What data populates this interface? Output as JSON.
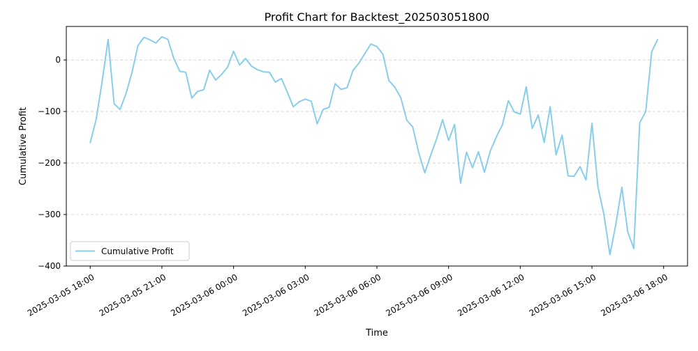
{
  "chart_data": {
    "type": "line",
    "title": "Profit Chart for Backtest_202503051800",
    "xlabel": "Time",
    "ylabel": "Cumulative Profit",
    "xlim": [
      "2025-03-05 17:00",
      "2025-03-06 19:00"
    ],
    "ylim": [
      -400,
      65
    ],
    "yticks": [
      0,
      -100,
      -200,
      -300,
      -400
    ],
    "yticklabels": [
      "0",
      "−100",
      "−200",
      "−300",
      "−400"
    ],
    "xticks": [
      "2025-03-05 18:00",
      "2025-03-05 21:00",
      "2025-03-06 00:00",
      "2025-03-06 03:00",
      "2025-03-06 06:00",
      "2025-03-06 09:00",
      "2025-03-06 12:00",
      "2025-03-06 15:00",
      "2025-03-06 18:00"
    ],
    "xticklabels": [
      "2025-03-05 18:00",
      "2025-03-05 21:00",
      "2025-03-06 00:00",
      "2025-03-06 03:00",
      "2025-03-06 06:00",
      "2025-03-06 09:00",
      "2025-03-06 12:00",
      "2025-03-06 15:00",
      "2025-03-06 18:00"
    ],
    "grid": "y-dashed",
    "legend": "lower left",
    "series": [
      {
        "name": "Cumulative Profit",
        "color": "#87CEEB",
        "x": [
          "2025-03-05 18:00",
          "2025-03-05 18:15",
          "2025-03-05 18:30",
          "2025-03-05 18:45",
          "2025-03-05 19:00",
          "2025-03-05 19:15",
          "2025-03-05 19:30",
          "2025-03-05 19:45",
          "2025-03-05 20:00",
          "2025-03-05 20:15",
          "2025-03-05 20:30",
          "2025-03-05 20:45",
          "2025-03-05 21:00",
          "2025-03-05 21:15",
          "2025-03-05 21:30",
          "2025-03-05 21:45",
          "2025-03-05 22:00",
          "2025-03-05 22:15",
          "2025-03-05 22:30",
          "2025-03-05 22:45",
          "2025-03-05 23:00",
          "2025-03-05 23:15",
          "2025-03-05 23:30",
          "2025-03-05 23:45",
          "2025-03-06 00:00",
          "2025-03-06 00:15",
          "2025-03-06 00:30",
          "2025-03-06 00:45",
          "2025-03-06 01:00",
          "2025-03-06 01:15",
          "2025-03-06 01:30",
          "2025-03-06 01:45",
          "2025-03-06 02:00",
          "2025-03-06 02:15",
          "2025-03-06 02:30",
          "2025-03-06 02:45",
          "2025-03-06 03:00",
          "2025-03-06 03:15",
          "2025-03-06 03:30",
          "2025-03-06 03:45",
          "2025-03-06 04:00",
          "2025-03-06 04:15",
          "2025-03-06 04:30",
          "2025-03-06 04:45",
          "2025-03-06 05:00",
          "2025-03-06 05:15",
          "2025-03-06 05:30",
          "2025-03-06 05:45",
          "2025-03-06 06:00",
          "2025-03-06 06:15",
          "2025-03-06 06:30",
          "2025-03-06 06:45",
          "2025-03-06 07:00",
          "2025-03-06 07:15",
          "2025-03-06 07:30",
          "2025-03-06 07:45",
          "2025-03-06 08:00",
          "2025-03-06 08:15",
          "2025-03-06 08:30",
          "2025-03-06 08:45",
          "2025-03-06 09:00",
          "2025-03-06 09:15",
          "2025-03-06 09:30",
          "2025-03-06 09:45",
          "2025-03-06 10:00",
          "2025-03-06 10:15",
          "2025-03-06 10:30",
          "2025-03-06 10:45",
          "2025-03-06 11:00",
          "2025-03-06 11:15",
          "2025-03-06 11:30",
          "2025-03-06 11:45",
          "2025-03-06 12:00",
          "2025-03-06 12:15",
          "2025-03-06 12:30",
          "2025-03-06 12:45",
          "2025-03-06 13:00",
          "2025-03-06 13:15",
          "2025-03-06 13:30",
          "2025-03-06 13:45",
          "2025-03-06 14:00",
          "2025-03-06 14:15",
          "2025-03-06 14:30",
          "2025-03-06 14:45",
          "2025-03-06 15:00",
          "2025-03-06 15:15",
          "2025-03-06 15:30",
          "2025-03-06 15:45",
          "2025-03-06 16:00",
          "2025-03-06 16:15",
          "2025-03-06 16:30",
          "2025-03-06 16:45",
          "2025-03-06 17:00",
          "2025-03-06 17:15",
          "2025-03-06 17:30",
          "2025-03-06 17:45"
        ],
        "y": [
          -161,
          -115,
          -42,
          40,
          -85,
          -96,
          -65,
          -24,
          28,
          44,
          39,
          33,
          45,
          40,
          3,
          -22,
          -24,
          -74,
          -61,
          -58,
          -20,
          -39,
          -28,
          -14,
          17,
          -10,
          3,
          -12,
          -19,
          -23,
          -24,
          -43,
          -36,
          -62,
          -91,
          -81,
          -76,
          -80,
          -124,
          -96,
          -92,
          -46,
          -57,
          -54,
          -20,
          -6,
          13,
          31,
          26,
          11,
          -40,
          -53,
          -73,
          -117,
          -130,
          -180,
          -219,
          -185,
          -153,
          -116,
          -156,
          -125,
          -239,
          -179,
          -209,
          -178,
          -218,
          -176,
          -149,
          -126,
          -79,
          -101,
          -105,
          -52,
          -133,
          -107,
          -160,
          -91,
          -184,
          -146,
          -225,
          -226,
          -207,
          -233,
          -123,
          -246,
          -300,
          -378,
          -319,
          -247,
          -334,
          -366,
          -122,
          -100,
          16,
          40
        ]
      }
    ]
  }
}
